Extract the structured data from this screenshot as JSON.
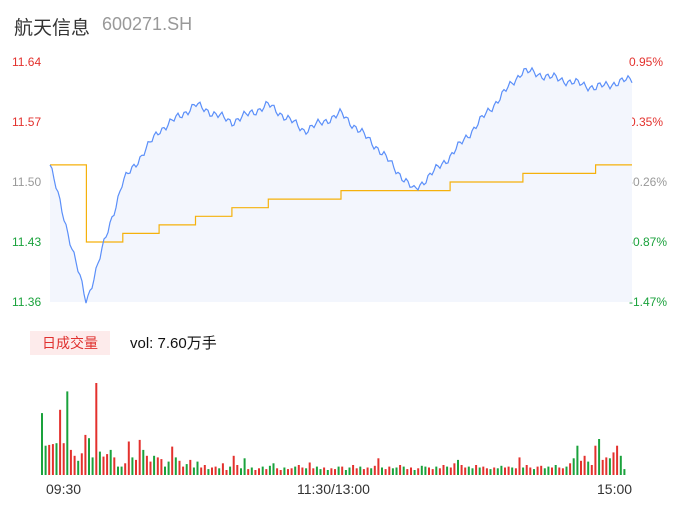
{
  "header": {
    "name": "航天信息",
    "code": "600271.SH"
  },
  "price_axis": {
    "left_ticks": [
      "11.64",
      "11.57",
      "11.50",
      "11.43",
      "11.36"
    ],
    "right_ticks": [
      "0.95%",
      "0.35%",
      "-0.26%",
      "-0.87%",
      "-1.47%"
    ]
  },
  "volume_panel": {
    "tab_label": "日成交量",
    "volume_text": "vol: 7.60万手"
  },
  "time_axis": {
    "ticks": [
      "09:30",
      "11:30/13:00",
      "15:00"
    ]
  },
  "colors": {
    "price_line": "#5b8ff9",
    "avg_line": "#f5b10c",
    "up": "#e3312d",
    "down": "#1aa23c",
    "area_fill": "#f3f6fd"
  },
  "chart_data": [
    {
      "type": "line",
      "ylim": [
        11.36,
        11.64
      ],
      "x": [
        "09:30",
        "09:45",
        "10:00",
        "10:15",
        "10:30",
        "10:45",
        "11:00",
        "11:15",
        "11:30/13:00",
        "13:15",
        "13:30",
        "13:45",
        "14:00",
        "14:15",
        "14:30",
        "14:45",
        "15:00"
      ],
      "series": [
        {
          "values": [
            11.52,
            11.36,
            11.5,
            11.56,
            11.59,
            11.57,
            11.59,
            11.56,
            11.58,
            11.54,
            11.49,
            11.53,
            11.58,
            11.63,
            11.62,
            11.61,
            11.62
          ]
        },
        {
          "values": [
            11.52,
            11.43,
            11.44,
            11.45,
            11.46,
            11.47,
            11.48,
            11.48,
            11.49,
            11.49,
            11.49,
            11.5,
            11.5,
            11.51,
            11.51,
            11.52,
            11.52
          ]
        }
      ]
    },
    {
      "type": "bar",
      "series": [
        {
          "name": "",
          "values": [
            0.74,
            0.35,
            0.36,
            0.37,
            0.38,
            0.78,
            0.38,
            1.0,
            0.3,
            0.23,
            0.17,
            0.26,
            0.48,
            0.44,
            0.21,
            1.1,
            0.28,
            0.22,
            0.25,
            0.3,
            0.21,
            0.1,
            0.1,
            0.14,
            0.4,
            0.21,
            0.18,
            0.42,
            0.3,
            0.23,
            0.16,
            0.23,
            0.21,
            0.19,
            0.1,
            0.16,
            0.34,
            0.21,
            0.17,
            0.1,
            0.13,
            0.18,
            0.09,
            0.16,
            0.09,
            0.12,
            0.07,
            0.09,
            0.1,
            0.08,
            0.14,
            0.06,
            0.1,
            0.23,
            0.12,
            0.08,
            0.2,
            0.07,
            0.09,
            0.06,
            0.08,
            0.1,
            0.07,
            0.11,
            0.14,
            0.08,
            0.06,
            0.09,
            0.07,
            0.08,
            0.1,
            0.12,
            0.09,
            0.08,
            0.15,
            0.08,
            0.1,
            0.07,
            0.09,
            0.06,
            0.08,
            0.07,
            0.1,
            0.1,
            0.06,
            0.09,
            0.12,
            0.08,
            0.1,
            0.07,
            0.09,
            0.08,
            0.11,
            0.2,
            0.09,
            0.07,
            0.1,
            0.08,
            0.09,
            0.12,
            0.1,
            0.07,
            0.09,
            0.06,
            0.08,
            0.11,
            0.1,
            0.09,
            0.07,
            0.1,
            0.08,
            0.12,
            0.1,
            0.09,
            0.14,
            0.18,
            0.12,
            0.09,
            0.1,
            0.08,
            0.12,
            0.09,
            0.1,
            0.08,
            0.07,
            0.09,
            0.08,
            0.11,
            0.09,
            0.1,
            0.09,
            0.08,
            0.21,
            0.09,
            0.12,
            0.09,
            0.07,
            0.1,
            0.11,
            0.08,
            0.1,
            0.09,
            0.12,
            0.09,
            0.08,
            0.1,
            0.14,
            0.2,
            0.35,
            0.17,
            0.23,
            0.16,
            0.12,
            0.35,
            0.43,
            0.18,
            0.21,
            0.2,
            0.27,
            0.35,
            0.23,
            0.07
          ]
        }
      ]
    }
  ]
}
